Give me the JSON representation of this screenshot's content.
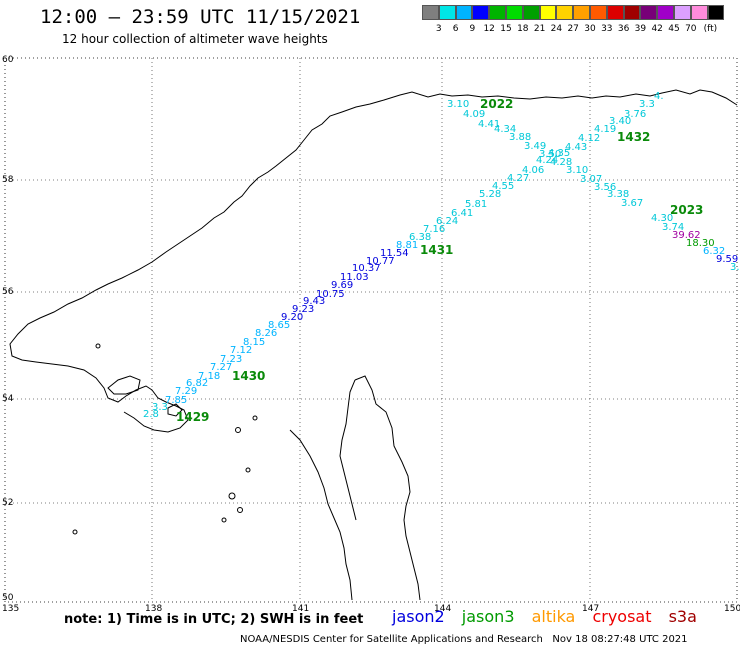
{
  "header": {
    "title": "12:00 – 23:59 UTC 11/15/2021",
    "subtitle": "12 hour collection of altimeter wave heights"
  },
  "legend": {
    "colors": [
      "#7f7f7f",
      "#00e6e6",
      "#00b4ff",
      "#0000ff",
      "#00b400",
      "#00dc00",
      "#00a000",
      "#ffff00",
      "#ffd200",
      "#ffa000",
      "#ff5a00",
      "#dc0000",
      "#a00000",
      "#780078",
      "#a000c8",
      "#dca0ff",
      "#ff8cdc",
      "#000000"
    ],
    "levels": [
      "3",
      "6",
      "9",
      "12",
      "15",
      "18",
      "21",
      "24",
      "27",
      "30",
      "33",
      "36",
      "39",
      "42",
      "45",
      "70"
    ],
    "unit": "(ft)"
  },
  "axes": {
    "lon_ticks": [
      "135",
      "138",
      "141",
      "144",
      "147",
      "150"
    ],
    "lat_ticks": [
      "60",
      "58",
      "56",
      "54",
      "52",
      "50"
    ]
  },
  "passes": [
    "2022",
    "1432",
    "2023",
    "1431",
    "1430",
    "1429"
  ],
  "tracks": {
    "northeast_descending": [
      "3.10",
      "4.09",
      "4.41",
      "4.34",
      "3.88",
      "3.49",
      "3.50",
      "4.28",
      "3.10",
      "3.07",
      "3.56",
      "3.38",
      "3.67",
      "4.30",
      "3.74"
    ],
    "northeast_end": [
      "4.",
      "3.3",
      "3.76",
      "3.40",
      "4.19",
      "4.12",
      "4.43",
      "4.35",
      "4.24",
      "4.06",
      "4.27",
      "4.55",
      "5.28",
      "5.81",
      "6.41"
    ],
    "main_ascending": [
      "6.24",
      "7.16",
      "6.38",
      "8.81",
      "11.54",
      "10.77",
      "10.37",
      "11.03",
      "9.69",
      "10.75",
      "9.43",
      "9.23",
      "9.20",
      "8.65",
      "8.26",
      "8.15",
      "7.12",
      "7.23",
      "7.27",
      "7.18",
      "6.82",
      "7.29",
      "7.85",
      "2.8",
      "3.3"
    ],
    "southeast_tail": [
      "39.62",
      "18.30",
      "6.32",
      "9.59",
      "3."
    ]
  },
  "footer": {
    "note": "note:  1) Time is in UTC;  2) SWH is in feet",
    "satellites": [
      {
        "name": "jason2",
        "color": "#0000dd"
      },
      {
        "name": "jason3",
        "color": "#009a00"
      },
      {
        "name": "altika",
        "color": "#ff9900"
      },
      {
        "name": "cryosat",
        "color": "#ee0000"
      },
      {
        "name": "s3a",
        "color": "#a00000"
      }
    ],
    "credit": "NOAA/NESDIS Center for Satellite Applications and Research   Nov 18 08:27:48 UTC 2021"
  }
}
